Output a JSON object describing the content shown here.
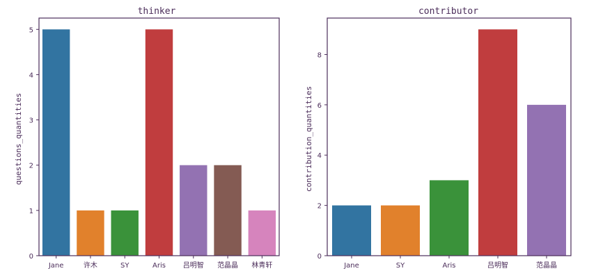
{
  "chart_data": [
    {
      "type": "bar",
      "title": "thinker",
      "xlabel": "",
      "ylabel": "questions_quantities",
      "categories": [
        "Jane",
        "许木",
        "SY",
        "Aris",
        "吕明智",
        "范晶晶",
        "林青轩"
      ],
      "values": [
        5,
        1,
        1,
        5,
        2,
        2,
        1
      ],
      "colors": [
        "#3274a1",
        "#e1812c",
        "#3a923a",
        "#c03d3e",
        "#9372b2",
        "#845b53",
        "#d684bd"
      ],
      "ylim": [
        0,
        5.25
      ],
      "yticks": [
        0,
        1,
        2,
        3,
        4,
        5
      ],
      "grid": false
    },
    {
      "type": "bar",
      "title": "contributor",
      "xlabel": "",
      "ylabel": "contribution_quantities",
      "categories": [
        "Jane",
        "SY",
        "Aris",
        "吕明智",
        "范晶晶"
      ],
      "values": [
        2,
        2,
        3,
        9,
        6
      ],
      "colors": [
        "#3274a1",
        "#e1812c",
        "#3a923a",
        "#c03d3e",
        "#9372b2"
      ],
      "ylim": [
        0,
        9.45
      ],
      "yticks": [
        0,
        2,
        4,
        6,
        8
      ],
      "grid": false
    }
  ]
}
